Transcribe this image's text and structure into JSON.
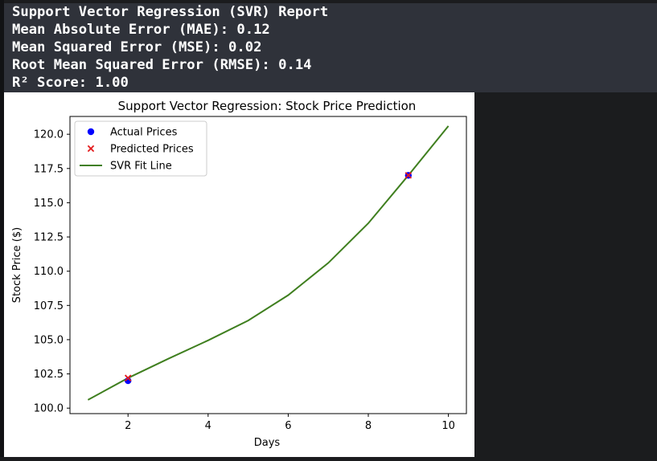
{
  "report": {
    "lines": [
      "Support Vector Regression (SVR) Report",
      "Mean Absolute Error (MAE): 0.12",
      "Mean Squared Error (MSE): 0.02",
      "Root Mean Squared Error (RMSE): 0.14",
      "R² Score: 1.00"
    ]
  },
  "chart_data": {
    "type": "scatter",
    "title": "Support Vector Regression: Stock Price Prediction",
    "xlabel": "Days",
    "ylabel": "Stock Price ($)",
    "xlim": [
      0.55,
      10.45
    ],
    "ylim": [
      99.6,
      121.3
    ],
    "xticks": [
      2,
      4,
      6,
      8,
      10
    ],
    "yticks": [
      100.0,
      102.5,
      105.0,
      107.5,
      110.0,
      112.5,
      115.0,
      117.5,
      120.0
    ],
    "ytick_labels": [
      "100.0",
      "102.5",
      "105.0",
      "107.5",
      "110.0",
      "112.5",
      "115.0",
      "117.5",
      "120.0"
    ],
    "grid": false,
    "legend": "upper-left",
    "series": [
      {
        "name": "Actual Prices",
        "kind": "scatter-dot",
        "color": "#0000ff",
        "x": [
          2,
          9
        ],
        "y": [
          102.0,
          117.0
        ]
      },
      {
        "name": "Predicted Prices",
        "kind": "scatter-x",
        "color": "#e31a1c",
        "x": [
          2,
          9
        ],
        "y": [
          102.2,
          117.0
        ]
      },
      {
        "name": "SVR Fit Line",
        "kind": "line",
        "color": "#3f7f1f",
        "x": [
          1,
          2,
          3,
          4,
          5,
          6,
          7,
          8,
          9,
          10
        ],
        "y": [
          100.6,
          102.2,
          103.6,
          104.95,
          106.4,
          108.25,
          110.6,
          113.5,
          117.0,
          120.6
        ]
      }
    ]
  }
}
